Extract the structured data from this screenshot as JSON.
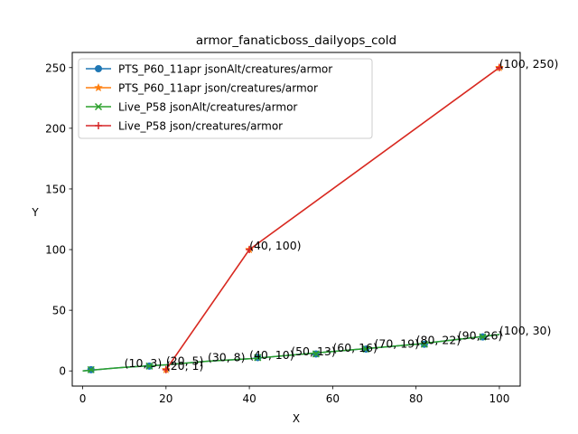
{
  "chart_data": {
    "type": "line",
    "title": "armor_fanaticboss_dailyops_cold",
    "xlabel": "X",
    "ylabel": "Y",
    "xlim": [
      -2.5,
      105
    ],
    "ylim": [
      -12.5,
      262.5
    ],
    "xticks": [
      0,
      20,
      40,
      60,
      80,
      100
    ],
    "yticks": [
      0,
      50,
      100,
      150,
      200,
      250
    ],
    "grid": false,
    "legend_position": "upper-left",
    "series": [
      {
        "name": "PTS_P60_11apr jsonAlt/creatures/armor",
        "color": "#1f77b4",
        "marker": "circle",
        "x": [
          0,
          10,
          20,
          30,
          40,
          50,
          60,
          70,
          80,
          90,
          100
        ],
        "y": [
          0,
          3,
          5,
          8,
          10,
          13,
          16,
          19,
          22,
          26,
          30
        ],
        "marker_x": [
          2,
          16,
          42,
          56,
          68,
          82,
          96
        ],
        "marker_y": [
          1,
          4,
          11,
          14,
          18,
          22,
          28
        ]
      },
      {
        "name": "PTS_P60_11apr json/creatures/armor",
        "color": "#ff7f0e",
        "marker": "star",
        "x": [
          20,
          40,
          100
        ],
        "y": [
          1,
          100,
          250
        ]
      },
      {
        "name": "Live_P58 jsonAlt/creatures/armor",
        "color": "#2ca02c",
        "marker": "x",
        "x": [
          0,
          10,
          20,
          30,
          40,
          50,
          60,
          70,
          80,
          90,
          100
        ],
        "y": [
          0,
          3,
          5,
          8,
          10,
          13,
          16,
          19,
          22,
          26,
          30
        ],
        "marker_x": [
          2,
          16,
          42,
          56,
          68,
          82,
          96
        ],
        "marker_y": [
          1,
          4,
          11,
          14,
          18,
          22,
          28
        ]
      },
      {
        "name": "Live_P58 json/creatures/armor",
        "color": "#d62728",
        "marker": "plus",
        "x": [
          20,
          40,
          100
        ],
        "y": [
          1,
          100,
          250
        ]
      }
    ],
    "annotations": [
      {
        "text": "(10, 3)",
        "x": 10,
        "y": 3
      },
      {
        "text": "(20, 5)",
        "x": 20,
        "y": 5
      },
      {
        "text": "(20, 1)",
        "x": 20,
        "y": 1
      },
      {
        "text": "(30, 8)",
        "x": 30,
        "y": 8
      },
      {
        "text": "(40, 10)",
        "x": 40,
        "y": 10
      },
      {
        "text": "(40, 100)",
        "x": 40,
        "y": 100
      },
      {
        "text": "(50, 13)",
        "x": 50,
        "y": 13
      },
      {
        "text": "(60, 16)",
        "x": 60,
        "y": 16
      },
      {
        "text": "(70, 19)",
        "x": 70,
        "y": 19
      },
      {
        "text": "(80, 22)",
        "x": 80,
        "y": 22
      },
      {
        "text": "(90, 26)",
        "x": 90,
        "y": 26
      },
      {
        "text": "(100, 30)",
        "x": 100,
        "y": 30
      },
      {
        "text": "(100, 250)",
        "x": 100,
        "y": 250
      }
    ]
  }
}
